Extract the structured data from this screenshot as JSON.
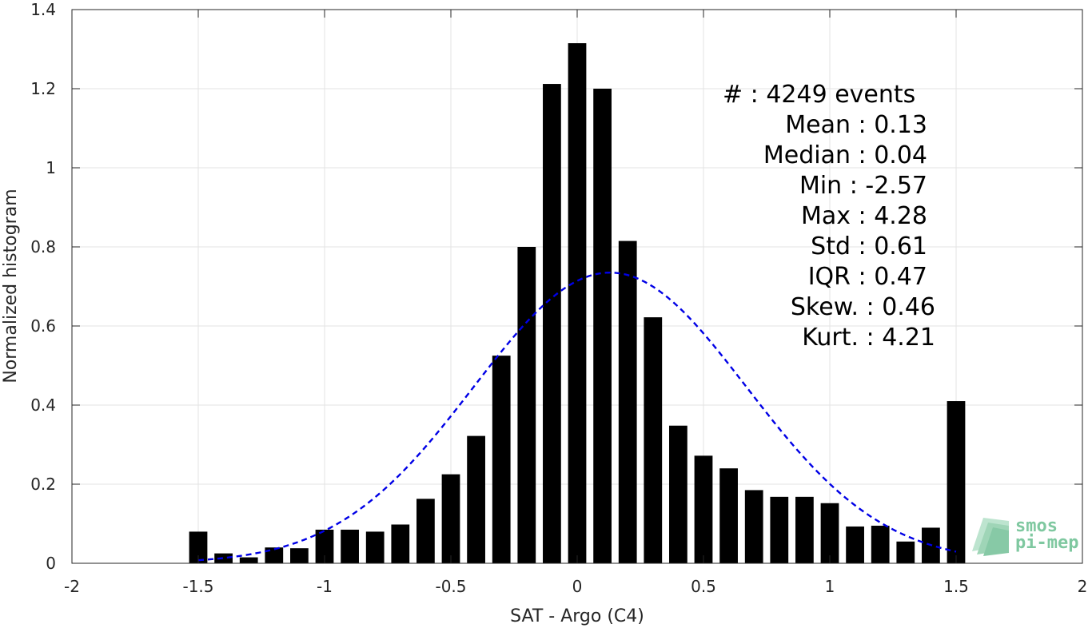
{
  "chart_data": {
    "type": "bar",
    "xlabel": "SAT - Argo (C4)",
    "ylabel": "Normalized histogram",
    "xlim": [
      -2,
      2
    ],
    "ylim": [
      0,
      1.4
    ],
    "grid": true,
    "x_ticks": [
      "-2",
      "-1.5",
      "-1",
      "-0.5",
      "0",
      "0.5",
      "1",
      "1.5",
      "2"
    ],
    "y_ticks": [
      "0",
      "0.2",
      "0.4",
      "0.6",
      "0.8",
      "1",
      "1.2",
      "1.4"
    ],
    "bar_color": "#000000",
    "bins": [
      {
        "x": -1.5,
        "y": 0.08
      },
      {
        "x": -1.4,
        "y": 0.025
      },
      {
        "x": -1.3,
        "y": 0.015
      },
      {
        "x": -1.2,
        "y": 0.04
      },
      {
        "x": -1.1,
        "y": 0.038
      },
      {
        "x": -1.0,
        "y": 0.085
      },
      {
        "x": -0.9,
        "y": 0.085
      },
      {
        "x": -0.8,
        "y": 0.08
      },
      {
        "x": -0.7,
        "y": 0.098
      },
      {
        "x": -0.6,
        "y": 0.163
      },
      {
        "x": -0.5,
        "y": 0.225
      },
      {
        "x": -0.4,
        "y": 0.322
      },
      {
        "x": -0.3,
        "y": 0.525
      },
      {
        "x": -0.2,
        "y": 0.8
      },
      {
        "x": -0.1,
        "y": 1.212
      },
      {
        "x": 0.0,
        "y": 1.315
      },
      {
        "x": 0.1,
        "y": 1.2
      },
      {
        "x": 0.2,
        "y": 0.815
      },
      {
        "x": 0.3,
        "y": 0.622
      },
      {
        "x": 0.4,
        "y": 0.348
      },
      {
        "x": 0.5,
        "y": 0.272
      },
      {
        "x": 0.6,
        "y": 0.24
      },
      {
        "x": 0.7,
        "y": 0.185
      },
      {
        "x": 0.8,
        "y": 0.168
      },
      {
        "x": 0.9,
        "y": 0.168
      },
      {
        "x": 1.0,
        "y": 0.152
      },
      {
        "x": 1.1,
        "y": 0.093
      },
      {
        "x": 1.2,
        "y": 0.095
      },
      {
        "x": 1.3,
        "y": 0.055
      },
      {
        "x": 1.4,
        "y": 0.09
      },
      {
        "x": 1.5,
        "y": 0.41
      }
    ],
    "fit_curve": {
      "style": "dashed",
      "color": "#0000e6",
      "x_range": [
        -1.5,
        1.5
      ],
      "mean": 0.13,
      "std": 0.54,
      "peak": 0.735
    },
    "annotations": [
      {
        "label": "#  ",
        "value": "4249 events"
      },
      {
        "label": "Mean",
        "value": "0.13"
      },
      {
        "label": "Median",
        "value": "0.04"
      },
      {
        "label": "Min",
        "value": "-2.57"
      },
      {
        "label": "Max",
        "value": "4.28"
      },
      {
        "label": "Std",
        "value": "0.61"
      },
      {
        "label": "IQR",
        "value": "0.47"
      },
      {
        "label": "Skew.",
        "value": "0.46"
      },
      {
        "label": "Kurt.",
        "value": "4.21"
      }
    ]
  },
  "stats_lines": [
    "#  : 4249 events",
    "Mean : 0.13",
    "Median : 0.04",
    "Min : -2.57",
    "Max : 4.28",
    "Std : 0.61",
    "IQR : 0.47",
    "Skew. : 0.46",
    "Kurt. : 4.21"
  ],
  "logo": {
    "line1": "smos",
    "line2": "pi-mep",
    "colors": [
      "#7fc8a0",
      "#4caf7d",
      "#2e8b57"
    ]
  }
}
